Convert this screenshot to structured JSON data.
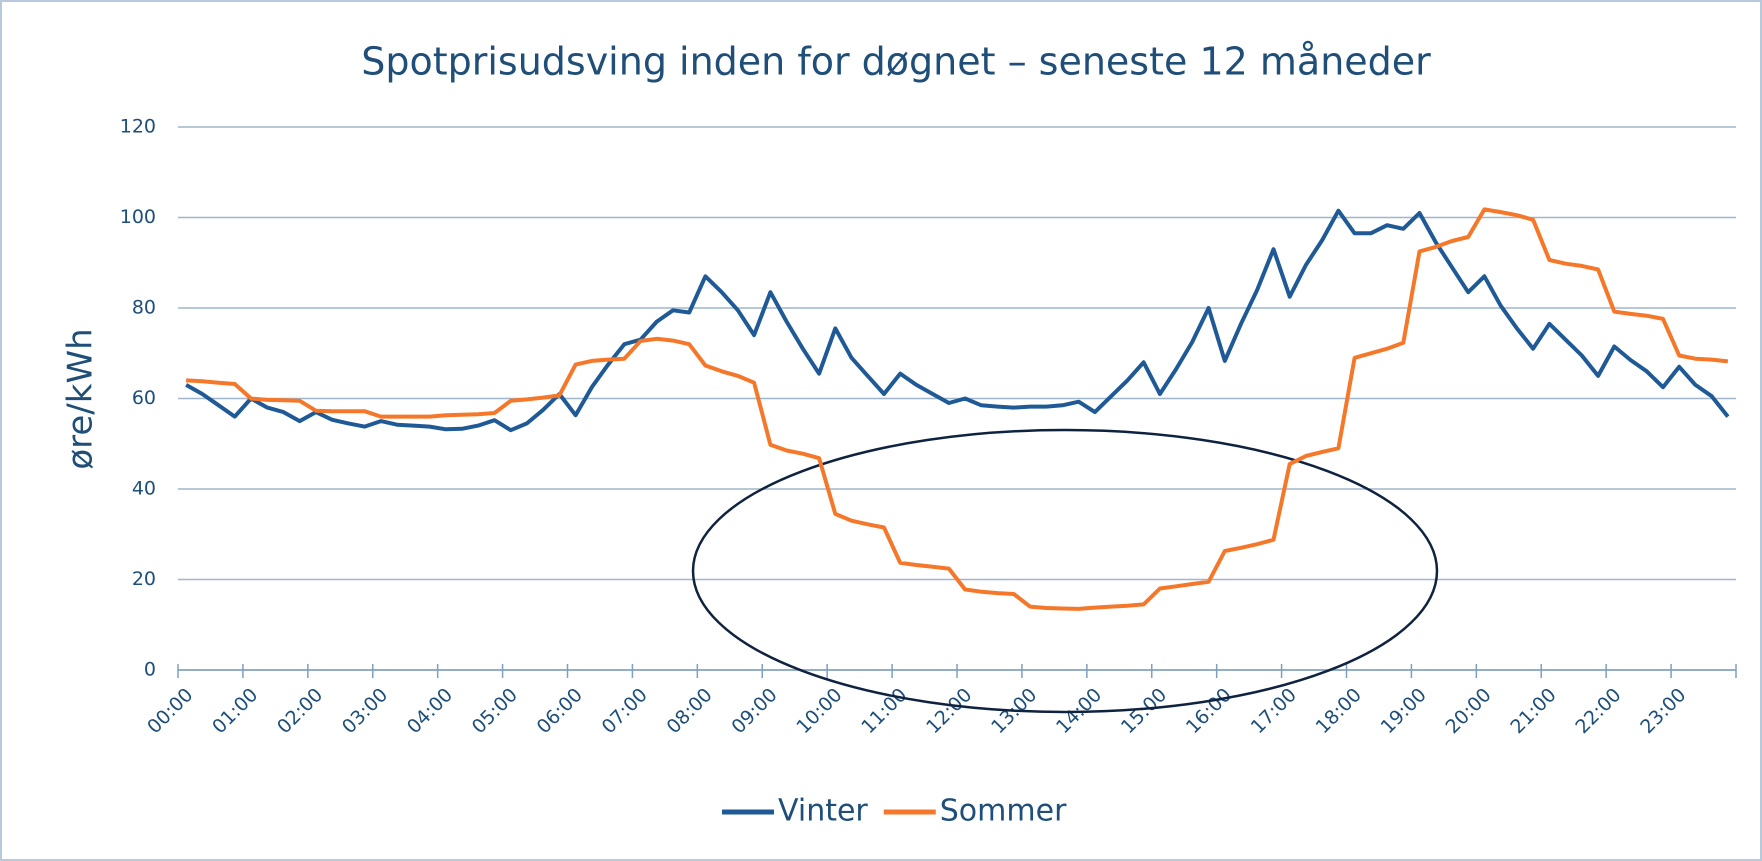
{
  "chart_data": {
    "type": "line",
    "title": "Spotprisudsving inden for døgnet – seneste 12 måneder",
    "y_label": "øre/kWh",
    "categories": [
      "00:00",
      null,
      null,
      null,
      "01:00",
      null,
      null,
      null,
      "02:00",
      null,
      null,
      null,
      "03:00",
      null,
      null,
      null,
      "04:00",
      null,
      null,
      null,
      "05:00",
      null,
      null,
      null,
      "06:00",
      null,
      null,
      null,
      "07:00",
      null,
      null,
      null,
      "08:00",
      null,
      null,
      null,
      "09:00",
      null,
      null,
      null,
      "10:00",
      null,
      null,
      null,
      "11:00",
      null,
      null,
      null,
      "12:00",
      null,
      null,
      null,
      "13:00",
      null,
      null,
      null,
      "14:00",
      null,
      null,
      null,
      "15:00",
      null,
      null,
      null,
      "16:00",
      null,
      null,
      null,
      "17:00",
      null,
      null,
      null,
      "18:00",
      null,
      null,
      null,
      "19:00",
      null,
      null,
      null,
      "20:00",
      null,
      null,
      null,
      "21:00",
      null,
      null,
      null,
      "22:00",
      null,
      null,
      null,
      "23:00",
      null,
      null,
      null
    ],
    "series": [
      {
        "name": "Vinter",
        "color": "#1f5a96",
        "values": [
          63,
          61,
          58.5,
          56,
          60,
          58,
          57,
          55,
          57,
          55.3,
          54.5,
          53.8,
          55,
          54.2,
          54,
          53.8,
          53.2,
          53.3,
          54,
          55.2,
          53,
          54.5,
          57.5,
          61,
          56.3,
          62.5,
          67.5,
          72,
          73,
          77,
          79.5,
          79,
          87,
          83.5,
          79.5,
          74,
          83.5,
          77,
          71,
          65.5,
          75.5,
          69,
          65,
          61,
          65.5,
          63,
          61,
          59,
          60,
          58.5,
          58.2,
          58,
          58.2,
          58.2,
          58.5,
          59.3,
          57,
          60.5,
          64,
          68,
          61,
          66.5,
          72.5,
          80,
          68.3,
          76.5,
          84,
          93,
          82.5,
          89.5,
          95,
          101.5,
          96.5,
          96.5,
          98.3,
          97.5,
          101,
          94.5,
          89,
          83.5,
          87,
          80.5,
          75.5,
          71,
          76.5,
          73,
          69.5,
          65,
          71.5,
          68.5,
          66,
          62.5,
          67,
          63,
          60.5,
          56
        ]
      },
      {
        "name": "Sommer",
        "color": "#f5782a",
        "values": [
          64,
          63.8,
          63.5,
          63.2,
          60,
          59.7,
          59.6,
          59.5,
          57.3,
          57.2,
          57.2,
          57.2,
          56,
          56,
          56,
          56,
          56.3,
          56.4,
          56.5,
          56.8,
          59.5,
          59.8,
          60.2,
          60.7,
          67.5,
          68.3,
          68.6,
          68.8,
          72.7,
          73.2,
          72.8,
          72,
          67.3,
          66,
          65,
          63.5,
          49.8,
          48.5,
          47.8,
          46.8,
          34.5,
          33,
          32.2,
          31.5,
          23.7,
          23.2,
          22.8,
          22.4,
          17.8,
          17.3,
          17,
          16.8,
          14,
          13.7,
          13.6,
          13.5,
          13.8,
          14,
          14.2,
          14.5,
          18,
          18.5,
          19,
          19.5,
          26.3,
          27,
          27.8,
          28.8,
          45.5,
          47.3,
          48.2,
          49,
          69,
          70,
          71,
          72.3,
          92.5,
          93.5,
          94.8,
          95.7,
          101.8,
          101.2,
          100.5,
          99.5,
          90.6,
          89.8,
          89.3,
          88.5,
          79.2,
          78.7,
          78.3,
          77.6,
          69.5,
          68.8,
          68.6,
          68.2
        ]
      }
    ],
    "ylim": [
      0,
      120
    ],
    "yticks": [
      0,
      20,
      40,
      60,
      80,
      100,
      120
    ],
    "grid": true,
    "legend": "bottom"
  }
}
